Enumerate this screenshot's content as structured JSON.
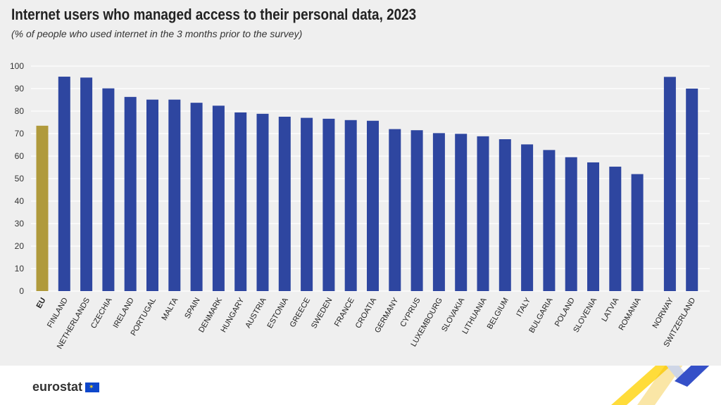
{
  "title": "Internet users who managed access to their personal data, 2023",
  "subtitle": "(% of people who used internet in the 3 months prior to the survey)",
  "logo": "eurostat",
  "colors": {
    "eu": "#b09a3c",
    "countries": "#2e46a0",
    "grid": "#ffffff"
  },
  "chart_data": {
    "type": "bar",
    "title": "Internet users who managed access to their personal data, 2023",
    "subtitle": "(% of people who used internet in the 3 months prior to the survey)",
    "ylim": [
      0,
      100
    ],
    "yticks": [
      0,
      10,
      20,
      30,
      40,
      50,
      60,
      70,
      80,
      90,
      100
    ],
    "grid": true,
    "categories": [
      "EU",
      "FINLAND",
      "NETHERLANDS",
      "CZECHIA",
      "IRELAND",
      "PORTUGAL",
      "MALTA",
      "SPAIN",
      "DENMARK",
      "HUNGARY",
      "AUSTRIA",
      "ESTONIA",
      "GREECE",
      "SWEDEN",
      "FRANCE",
      "CROATIA",
      "GERMANY",
      "CYPRUS",
      "LUXEMBOURG",
      "SLOVAKIA",
      "LITHUANIA",
      "BELGIUM",
      "ITALY",
      "BULGARIA",
      "POLAND",
      "SLOVENIA",
      "LATVIA",
      "ROMANIA",
      "NORWAY",
      "SWITZERLAND"
    ],
    "values": [
      73.5,
      95.3,
      94.9,
      90.1,
      86.3,
      85.1,
      85.1,
      83.7,
      82.4,
      79.4,
      78.8,
      77.5,
      77.0,
      76.6,
      76.0,
      75.7,
      72.0,
      71.5,
      70.2,
      69.9,
      68.8,
      67.5,
      65.2,
      62.7,
      59.5,
      57.2,
      55.3,
      52.0,
      95.2,
      90.0
    ]
  }
}
